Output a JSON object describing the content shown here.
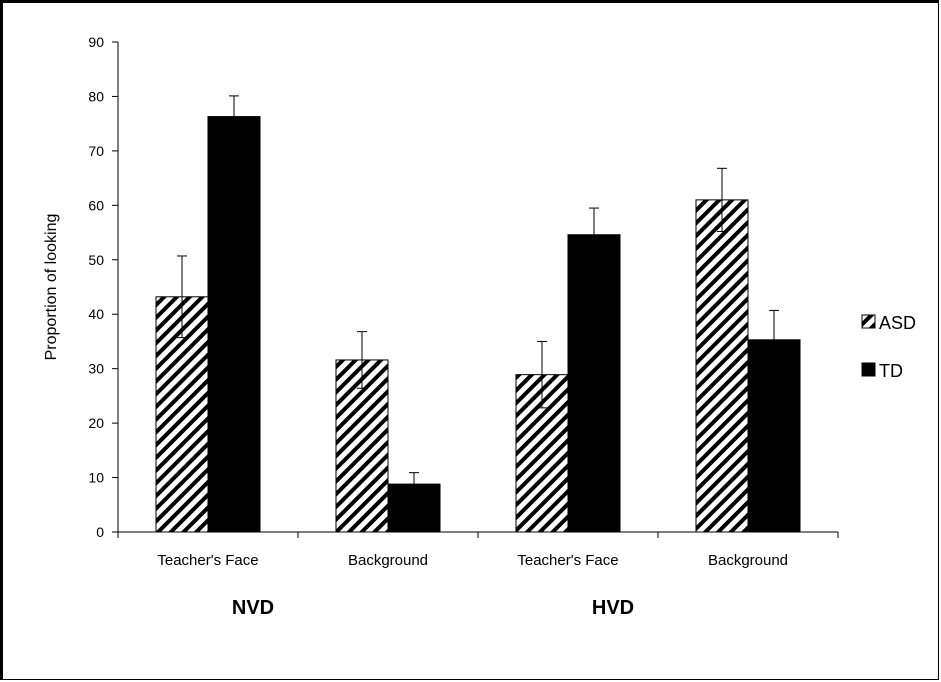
{
  "chart_data": {
    "type": "bar",
    "ylabel": "Proportion of looking",
    "xlabel": "",
    "ylim": [
      0,
      90
    ],
    "yticks": [
      0,
      10,
      20,
      30,
      40,
      50,
      60,
      70,
      80,
      90
    ],
    "categories": [
      "Teacher's Face",
      "Background",
      "Teacher's Face",
      "Background"
    ],
    "groups": [
      {
        "label": "NVD",
        "categories": [
          0,
          1
        ]
      },
      {
        "label": "HVD",
        "categories": [
          2,
          3
        ]
      }
    ],
    "series": [
      {
        "name": "ASD",
        "pattern": "diagonal-hatch",
        "color": "#000000",
        "values": [
          43.2,
          31.6,
          28.9,
          61.0
        ],
        "errors": [
          7.5,
          5.2,
          6.1,
          5.8
        ]
      },
      {
        "name": "TD",
        "pattern": "solid",
        "color": "#000000",
        "values": [
          76.3,
          8.8,
          54.6,
          35.3
        ],
        "errors": [
          3.8,
          2.1,
          4.9,
          5.4
        ]
      }
    ],
    "legend": "right",
    "grid": false
  }
}
